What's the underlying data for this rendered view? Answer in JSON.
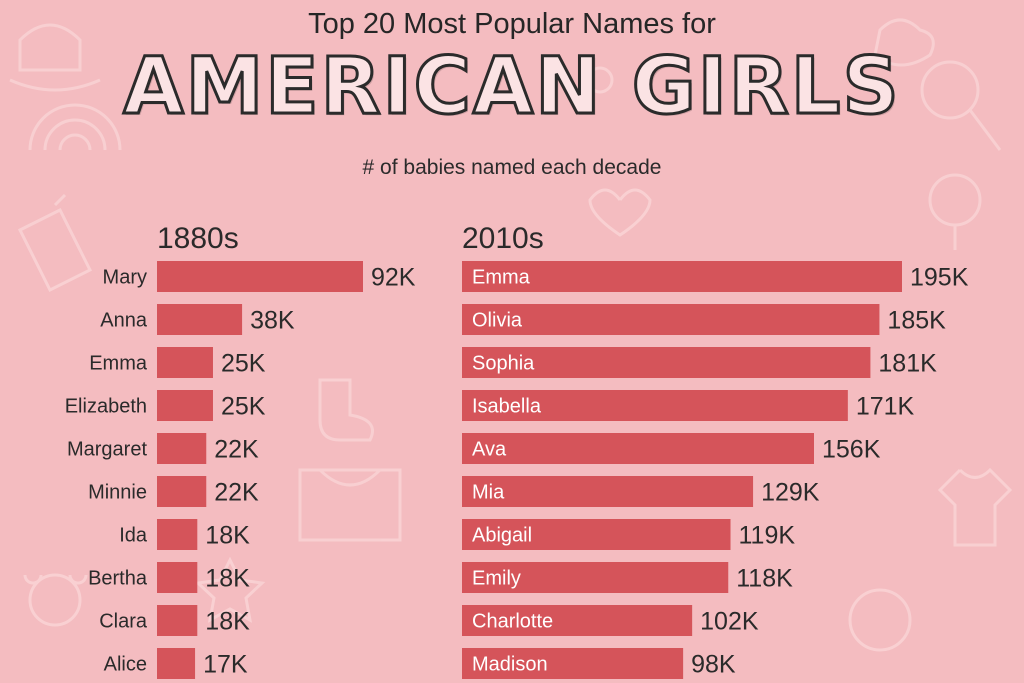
{
  "header": {
    "title_top": "Top 20 Most Popular Names for",
    "title_main": "AMERICAN GIRLS",
    "subtitle": "# of babies named each decade"
  },
  "colors": {
    "background": "#f4bcc0",
    "bar": "#d5545a",
    "text": "#2a2a2a"
  },
  "chart_data": [
    {
      "type": "bar",
      "orientation": "horizontal",
      "title": "1880s",
      "categories": [
        "Mary",
        "Anna",
        "Emma",
        "Elizabeth",
        "Margaret",
        "Minnie",
        "Ida",
        "Bertha",
        "Clara",
        "Alice"
      ],
      "values": [
        92,
        38,
        25,
        25,
        22,
        22,
        18,
        18,
        18,
        17
      ],
      "value_labels": [
        "92K",
        "38K",
        "25K",
        "25K",
        "22K",
        "22K",
        "18K",
        "18K",
        "18K",
        "17K"
      ],
      "unit": "K",
      "category_label_position": "left",
      "grid": false,
      "legend": "none"
    },
    {
      "type": "bar",
      "orientation": "horizontal",
      "title": "2010s",
      "categories": [
        "Emma",
        "Olivia",
        "Sophia",
        "Isabella",
        "Ava",
        "Mia",
        "Abigail",
        "Emily",
        "Charlotte",
        "Madison"
      ],
      "values": [
        195,
        185,
        181,
        171,
        156,
        129,
        119,
        118,
        102,
        98
      ],
      "value_labels": [
        "195K",
        "185K",
        "181K",
        "171K",
        "156K",
        "129K",
        "119K",
        "118K",
        "102K",
        "98K"
      ],
      "unit": "K",
      "category_label_position": "inside",
      "grid": false,
      "legend": "none"
    }
  ]
}
